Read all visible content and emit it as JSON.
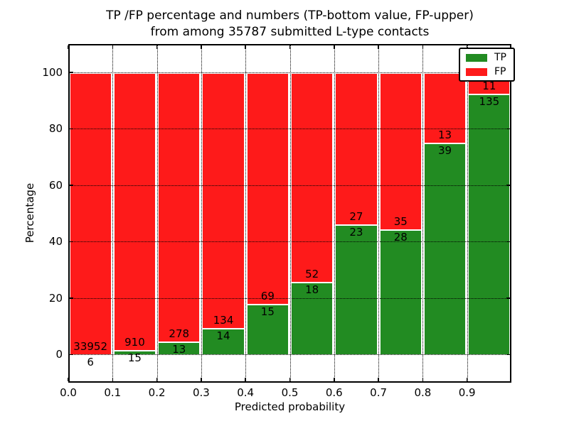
{
  "title": {
    "line1": "TP /FP percentage and numbers (TP-bottom value, FP-upper)",
    "line2": "from among 35787 submitted L-type contacts"
  },
  "axes": {
    "xlabel": "Predicted probability",
    "ylabel": "Percentage",
    "x_ticks": [
      "0.0",
      "0.1",
      "0.2",
      "0.3",
      "0.4",
      "0.5",
      "0.6",
      "0.7",
      "0.8",
      "0.9"
    ],
    "y_ticks": [
      "0",
      "20",
      "40",
      "60",
      "80",
      "100"
    ]
  },
  "legend": {
    "position": "upper right",
    "items": [
      {
        "label": "TP",
        "color": "#228b22"
      },
      {
        "label": "FP",
        "color": "#fe1a1a"
      }
    ]
  },
  "colors": {
    "tp": "#228b22",
    "fp": "#fe1a1a",
    "grid": "#000000",
    "bar_edge": "#ffffff",
    "background": "#ffffff"
  },
  "chart_data": {
    "type": "bar",
    "stacked": true,
    "normalized_to_percent": true,
    "title": "TP /FP percentage and numbers (TP-bottom value, FP-upper) from among 35787 submitted L-type contacts",
    "xlabel": "Predicted probability",
    "ylabel": "Percentage",
    "bin_edges": [
      0.0,
      0.1,
      0.2,
      0.3,
      0.4,
      0.5,
      0.6,
      0.7,
      0.8,
      0.9,
      1.0
    ],
    "categories": [
      "0.0-0.1",
      "0.1-0.2",
      "0.2-0.3",
      "0.3-0.4",
      "0.4-0.5",
      "0.5-0.6",
      "0.6-0.7",
      "0.7-0.8",
      "0.8-0.9",
      "0.9-1.0"
    ],
    "series": [
      {
        "name": "TP",
        "color": "#228b22",
        "counts": [
          6,
          15,
          13,
          14,
          15,
          18,
          23,
          28,
          39,
          135
        ]
      },
      {
        "name": "FP",
        "color": "#fe1a1a",
        "counts": [
          33952,
          910,
          278,
          134,
          69,
          52,
          27,
          35,
          13,
          11
        ]
      }
    ],
    "total_submitted": 35787,
    "xlim": [
      0.0,
      1.0
    ],
    "ylim": [
      -10,
      110
    ],
    "grid": true,
    "grid_style": "dotted",
    "legend_position": "upper right"
  }
}
